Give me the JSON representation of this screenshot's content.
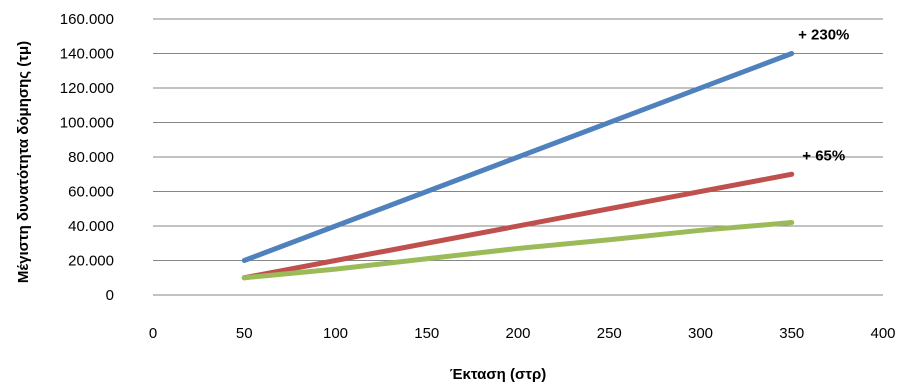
{
  "chart_data": {
    "type": "line",
    "title": "",
    "xlabel": "Έκταση (στρ)",
    "ylabel": "Μέγιστη δυνατότητα δόμησης (τμ)",
    "xlim": [
      0,
      400
    ],
    "ylim": [
      0,
      160000
    ],
    "x_ticks": [
      0,
      50,
      100,
      150,
      200,
      250,
      300,
      350,
      400
    ],
    "x_tick_labels": [
      "0",
      "50",
      "100",
      "150",
      "200",
      "250",
      "300",
      "350",
      "400"
    ],
    "y_ticks": [
      0,
      20000,
      40000,
      60000,
      80000,
      100000,
      120000,
      140000,
      160000
    ],
    "y_tick_labels": [
      "0",
      "20.000",
      "40.000",
      "60.000",
      "80.000",
      "100.000",
      "120.000",
      "140.000",
      "160.000"
    ],
    "grid": "horizontal",
    "legend": "none",
    "series": [
      {
        "color": "#4F81BD",
        "x": [
          50,
          350
        ],
        "y": [
          20000,
          140000
        ]
      },
      {
        "color": "#C0504D",
        "x": [
          50,
          350
        ],
        "y": [
          10000,
          70000
        ]
      },
      {
        "color": "#9BBB59",
        "x": [
          50,
          100,
          150,
          200,
          250,
          300,
          350
        ],
        "y": [
          10000,
          15000,
          21000,
          27000,
          32000,
          37500,
          42000
        ]
      }
    ],
    "annotations": [
      {
        "text": "+ 230%",
        "x": 350,
        "y": 140000
      },
      {
        "text": "+ 65%",
        "x": 350,
        "y": 70000
      }
    ]
  }
}
